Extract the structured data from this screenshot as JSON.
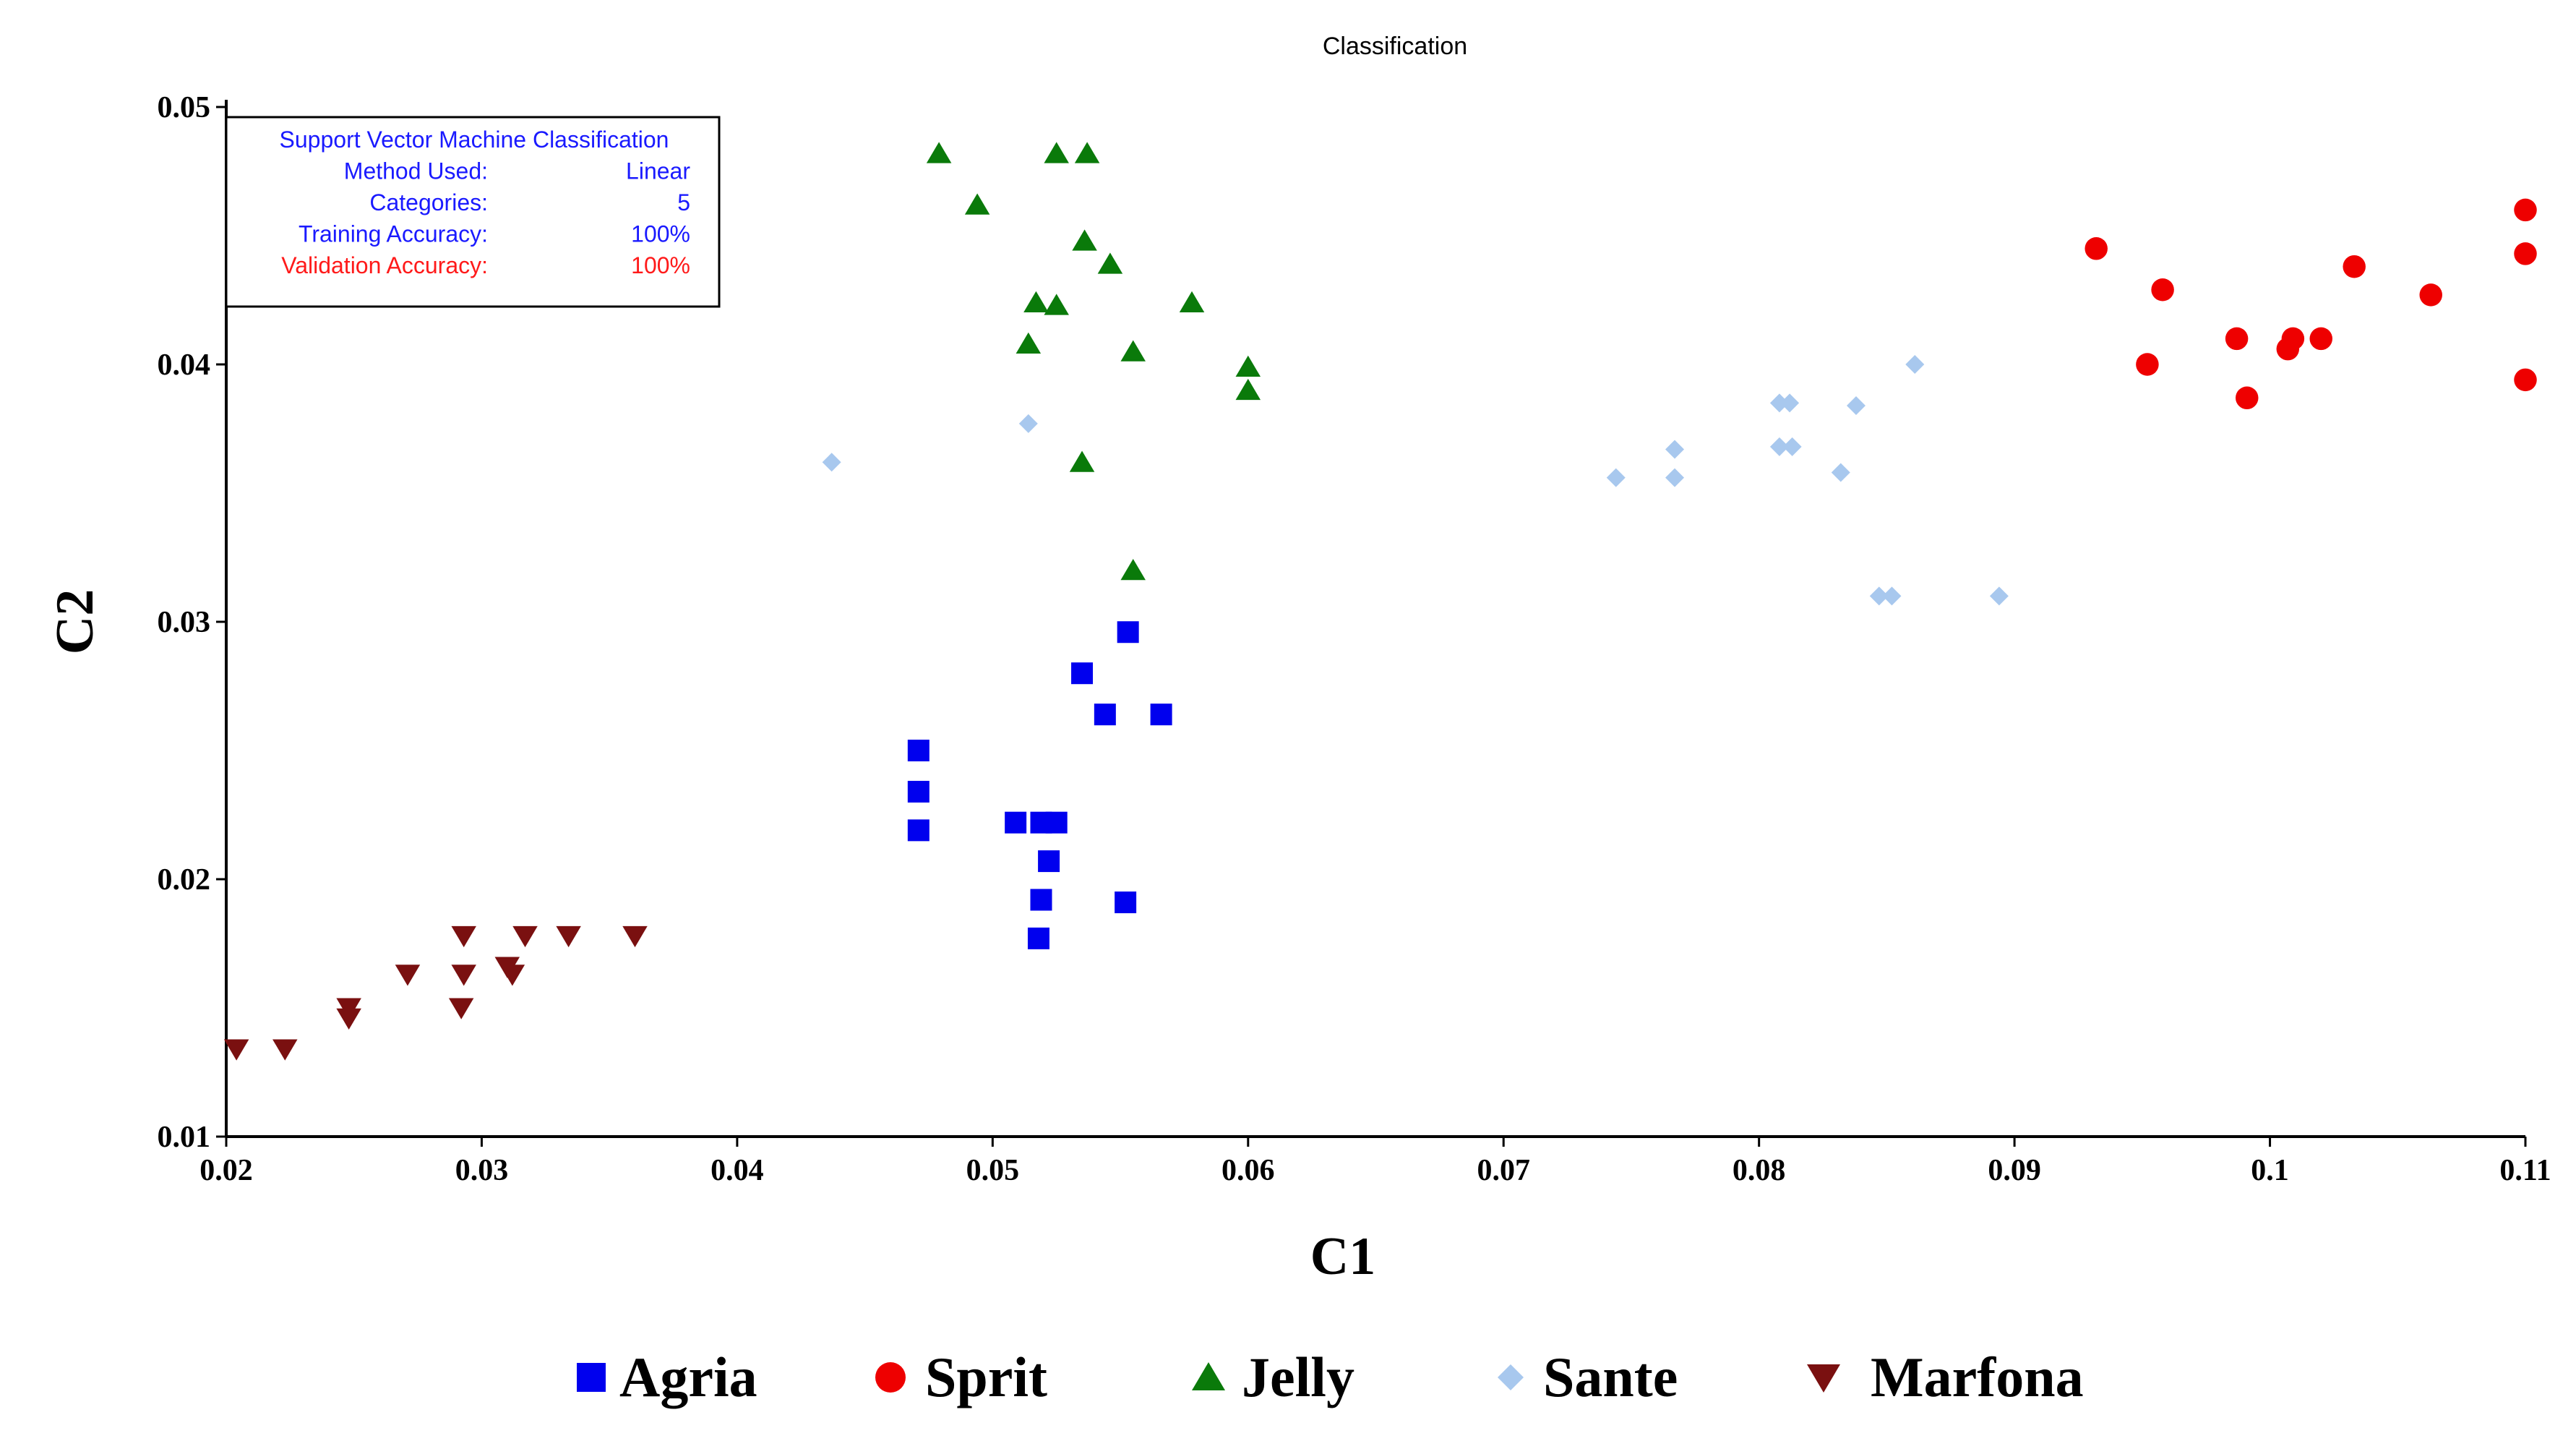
{
  "chart_data": {
    "type": "scatter",
    "title": "Classification",
    "xlabel": "C1",
    "ylabel": "C2",
    "xlim": [
      0.02,
      0.11
    ],
    "ylim": [
      0.01,
      0.05
    ],
    "x_ticks": [
      {
        "value": 0.02,
        "label": "0.02"
      },
      {
        "value": 0.03,
        "label": "0.03"
      },
      {
        "value": 0.04,
        "label": "0.04"
      },
      {
        "value": 0.05,
        "label": "0.05"
      },
      {
        "value": 0.06,
        "label": "0.06"
      },
      {
        "value": 0.07,
        "label": "0.07"
      },
      {
        "value": 0.08,
        "label": "0.08"
      },
      {
        "value": 0.09,
        "label": "0.09"
      },
      {
        "value": 0.1,
        "label": "0.1"
      },
      {
        "value": 0.11,
        "label": "0.11"
      }
    ],
    "y_ticks": [
      {
        "value": 0.01,
        "label": "0.01"
      },
      {
        "value": 0.02,
        "label": "0.02"
      },
      {
        "value": 0.03,
        "label": "0.03"
      },
      {
        "value": 0.04,
        "label": "0.04"
      },
      {
        "value": 0.05,
        "label": "0.05"
      }
    ],
    "grid": false,
    "legend_position": "bottom",
    "info_box": {
      "position": "top-left",
      "rows": [
        {
          "label": "Support Vector Machine Classification",
          "value": "",
          "color": "#1a1aff"
        },
        {
          "label": "Method Used:",
          "value": "Linear",
          "color": "#1a1aff"
        },
        {
          "label": "Categories:",
          "value": "5",
          "color": "#1a1aff"
        },
        {
          "label": "Training Accuracy:",
          "value": "100%",
          "color": "#1a1aff"
        },
        {
          "label": "Validation Accuracy:",
          "value": "100%",
          "color": "#ff1a1a"
        }
      ]
    },
    "series": [
      {
        "name": "Agria",
        "marker": "square",
        "color": "#0000ee",
        "points": [
          [
            0.0471,
            0.025
          ],
          [
            0.0471,
            0.0234
          ],
          [
            0.0471,
            0.0219
          ],
          [
            0.0509,
            0.0222
          ],
          [
            0.0519,
            0.0222
          ],
          [
            0.0525,
            0.0222
          ],
          [
            0.0522,
            0.0207
          ],
          [
            0.0519,
            0.0192
          ],
          [
            0.0518,
            0.0177
          ],
          [
            0.0552,
            0.0191
          ],
          [
            0.0535,
            0.028
          ],
          [
            0.0544,
            0.0264
          ],
          [
            0.0566,
            0.0264
          ],
          [
            0.0553,
            0.0296
          ]
        ]
      },
      {
        "name": "Sprit",
        "marker": "circle",
        "color": "#ee0000",
        "points": [
          [
            0.0932,
            0.0445
          ],
          [
            0.0958,
            0.0429
          ],
          [
            0.0952,
            0.04
          ],
          [
            0.0987,
            0.041
          ],
          [
            0.0991,
            0.0387
          ],
          [
            0.1007,
            0.0406
          ],
          [
            0.1009,
            0.041
          ],
          [
            0.102,
            0.041
          ],
          [
            0.1033,
            0.0438
          ],
          [
            0.1063,
            0.0427
          ],
          [
            0.11,
            0.046
          ],
          [
            0.11,
            0.0443
          ],
          [
            0.11,
            0.0394
          ]
        ]
      },
      {
        "name": "Jelly",
        "marker": "triangle-up",
        "color": "#0a7a0a",
        "points": [
          [
            0.0479,
            0.0482
          ],
          [
            0.0525,
            0.0482
          ],
          [
            0.0537,
            0.0482
          ],
          [
            0.0494,
            0.0462
          ],
          [
            0.0536,
            0.0448
          ],
          [
            0.0546,
            0.0439
          ],
          [
            0.0517,
            0.0424
          ],
          [
            0.0525,
            0.0423
          ],
          [
            0.0578,
            0.0424
          ],
          [
            0.0514,
            0.0408
          ],
          [
            0.0555,
            0.0405
          ],
          [
            0.06,
            0.0399
          ],
          [
            0.06,
            0.039
          ],
          [
            0.0535,
            0.0362
          ],
          [
            0.0555,
            0.032
          ]
        ]
      },
      {
        "name": "Sante",
        "marker": "diamond",
        "color": "#a8c8ee",
        "points": [
          [
            0.0437,
            0.0362
          ],
          [
            0.0514,
            0.0377
          ],
          [
            0.0744,
            0.0356
          ],
          [
            0.0767,
            0.0367
          ],
          [
            0.0767,
            0.0356
          ],
          [
            0.0808,
            0.0385
          ],
          [
            0.0812,
            0.0385
          ],
          [
            0.0808,
            0.0368
          ],
          [
            0.0813,
            0.0368
          ],
          [
            0.0838,
            0.0384
          ],
          [
            0.0861,
            0.04
          ],
          [
            0.0832,
            0.0358
          ],
          [
            0.0847,
            0.031
          ],
          [
            0.0852,
            0.031
          ],
          [
            0.0894,
            0.031
          ]
        ]
      },
      {
        "name": "Marfona",
        "marker": "triangle-down",
        "color": "#7a1010",
        "points": [
          [
            0.0204,
            0.0134
          ],
          [
            0.0223,
            0.0134
          ],
          [
            0.0248,
            0.015
          ],
          [
            0.0248,
            0.0146
          ],
          [
            0.0271,
            0.0163
          ],
          [
            0.0293,
            0.0178
          ],
          [
            0.0293,
            0.0163
          ],
          [
            0.0292,
            0.015
          ],
          [
            0.031,
            0.0166
          ],
          [
            0.0312,
            0.0163
          ],
          [
            0.0317,
            0.0178
          ],
          [
            0.0334,
            0.0178
          ],
          [
            0.036,
            0.0178
          ]
        ]
      }
    ]
  }
}
